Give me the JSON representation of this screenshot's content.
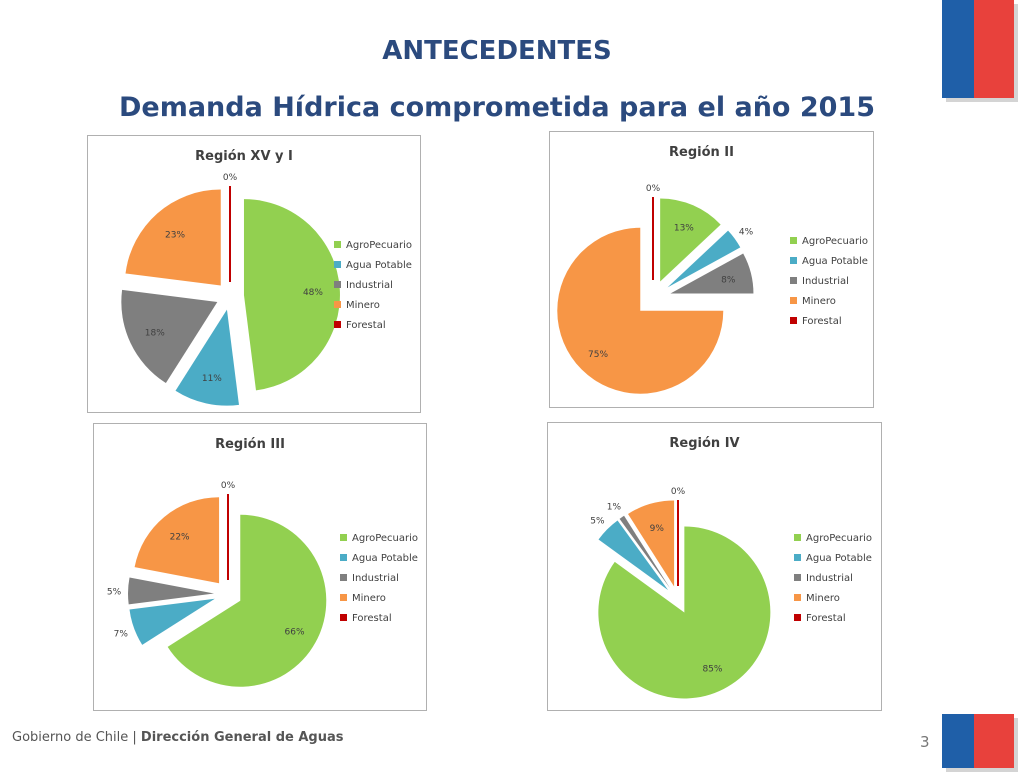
{
  "slide": {
    "title": "ANTECEDENTES",
    "subtitle": "Demanda Hídrica comprometida para el año 2015",
    "footer_org": "Gobierno de Chile",
    "footer_sep": " | ",
    "footer_dept": "Dirección General de Aguas",
    "page_number": "3"
  },
  "colors": {
    "AgroPecuario": "#92d050",
    "Agua Potable": "#4bacc6",
    "Industrial": "#7f7f7f",
    "Minero": "#f79646",
    "Forestal": "#c00000",
    "title": "#2b4a7e",
    "flag_blue": "#1f5fa8",
    "flag_red": "#e8413c"
  },
  "chart_data": [
    {
      "type": "pie",
      "title": "Región XV y I",
      "categories": [
        "AgroPecuario",
        "Agua Potable",
        "Industrial",
        "Minero",
        "Forestal"
      ],
      "values": [
        48,
        11,
        18,
        23,
        0
      ],
      "labels": [
        "48%",
        "11%",
        "18%",
        "23%",
        "0%"
      ],
      "legend": "right"
    },
    {
      "type": "pie",
      "title": "Región II",
      "categories": [
        "AgroPecuario",
        "Agua Potable",
        "Industrial",
        "Minero",
        "Forestal"
      ],
      "values": [
        13,
        4,
        8,
        75,
        0
      ],
      "labels": [
        "13%",
        "4%",
        "8%",
        "75%",
        "0%"
      ],
      "legend": "right"
    },
    {
      "type": "pie",
      "title": "Región III",
      "categories": [
        "AgroPecuario",
        "Agua Potable",
        "Industrial",
        "Minero",
        "Forestal"
      ],
      "values": [
        66,
        7,
        5,
        22,
        0
      ],
      "labels": [
        "66%",
        "7%",
        "5%",
        "22%",
        "0%"
      ],
      "legend": "right"
    },
    {
      "type": "pie",
      "title": "Región IV",
      "categories": [
        "AgroPecuario",
        "Agua Potable",
        "Industrial",
        "Minero",
        "Forestal"
      ],
      "values": [
        85,
        5,
        1,
        9,
        0
      ],
      "labels": [
        "85%",
        "5%",
        "1%",
        "9%",
        "0%"
      ],
      "legend": "right"
    }
  ]
}
